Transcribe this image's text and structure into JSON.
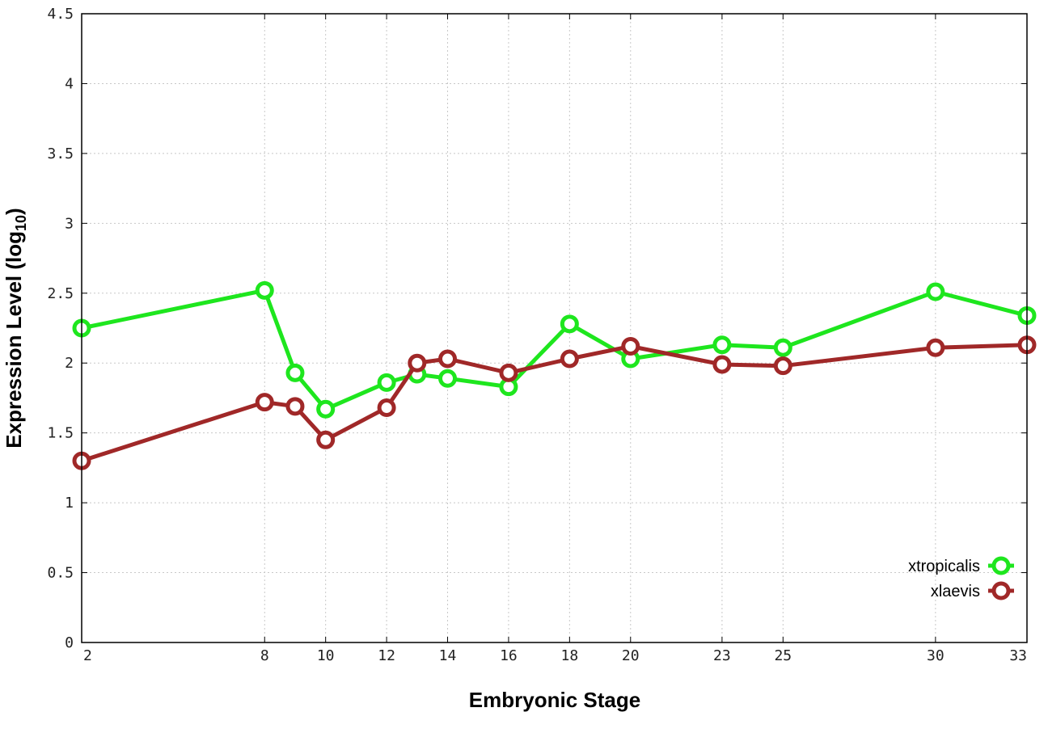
{
  "chart_data": {
    "type": "line",
    "xlabel": "Embryonic Stage",
    "ylabel": "Expression Level (log",
    "ylabel_subscript": "10",
    "ylabel_suffix": ")",
    "x": [
      2,
      8,
      9,
      10,
      12,
      13,
      14,
      16,
      18,
      20,
      23,
      25,
      30,
      33
    ],
    "xticks": [
      2,
      8,
      10,
      12,
      14,
      16,
      18,
      20,
      23,
      25,
      30,
      33
    ],
    "xlim": [
      2,
      33
    ],
    "ylim": [
      0,
      4.5
    ],
    "yticks": [
      0,
      0.5,
      1,
      1.5,
      2,
      2.5,
      3,
      3.5,
      4,
      4.5
    ],
    "ytick_labels": [
      "0",
      "0.5",
      "1",
      "1.5",
      "2",
      "2.5",
      "3",
      "3.5",
      "4",
      "4.5"
    ],
    "grid": true,
    "legend_position": "bottom-right",
    "series": [
      {
        "name": "xtropicalis",
        "color": "#1ee61e",
        "values": [
          2.25,
          2.52,
          1.93,
          1.67,
          1.86,
          1.92,
          1.89,
          1.83,
          2.28,
          2.03,
          2.13,
          2.11,
          2.51,
          2.34
        ]
      },
      {
        "name": "xlaevis",
        "color": "#a02828",
        "values": [
          1.3,
          1.72,
          1.69,
          1.45,
          1.68,
          2.0,
          2.03,
          1.93,
          2.03,
          2.12,
          1.99,
          1.98,
          2.11,
          2.13
        ]
      }
    ]
  }
}
